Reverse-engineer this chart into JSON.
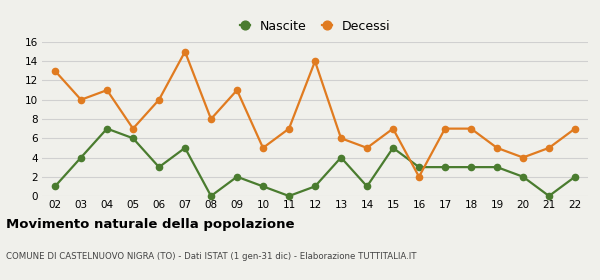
{
  "years": [
    "02",
    "03",
    "04",
    "05",
    "06",
    "07",
    "08",
    "09",
    "10",
    "11",
    "12",
    "13",
    "14",
    "15",
    "16",
    "17",
    "18",
    "19",
    "20",
    "21",
    "22"
  ],
  "nascite": [
    1,
    4,
    7,
    6,
    3,
    5,
    0,
    2,
    1,
    0,
    1,
    4,
    1,
    5,
    3,
    3,
    3,
    3,
    2,
    0,
    2
  ],
  "decessi": [
    13,
    10,
    11,
    7,
    10,
    15,
    8,
    11,
    5,
    7,
    14,
    6,
    5,
    7,
    2,
    7,
    7,
    5,
    4,
    5,
    7
  ],
  "nascite_color": "#4a7c2f",
  "decessi_color": "#e07b20",
  "background_color": "#f0f0eb",
  "grid_color": "#d0d0d0",
  "ylim": [
    0,
    16
  ],
  "yticks": [
    0,
    2,
    4,
    6,
    8,
    10,
    12,
    14,
    16
  ],
  "title": "Movimento naturale della popolazione",
  "subtitle": "COMUNE DI CASTELNUOVO NIGRA (TO) - Dati ISTAT (1 gen-31 dic) - Elaborazione TUTTITALIA.IT",
  "legend_nascite": "Nascite",
  "legend_decessi": "Decessi",
  "marker_size": 4.5,
  "line_width": 1.6
}
